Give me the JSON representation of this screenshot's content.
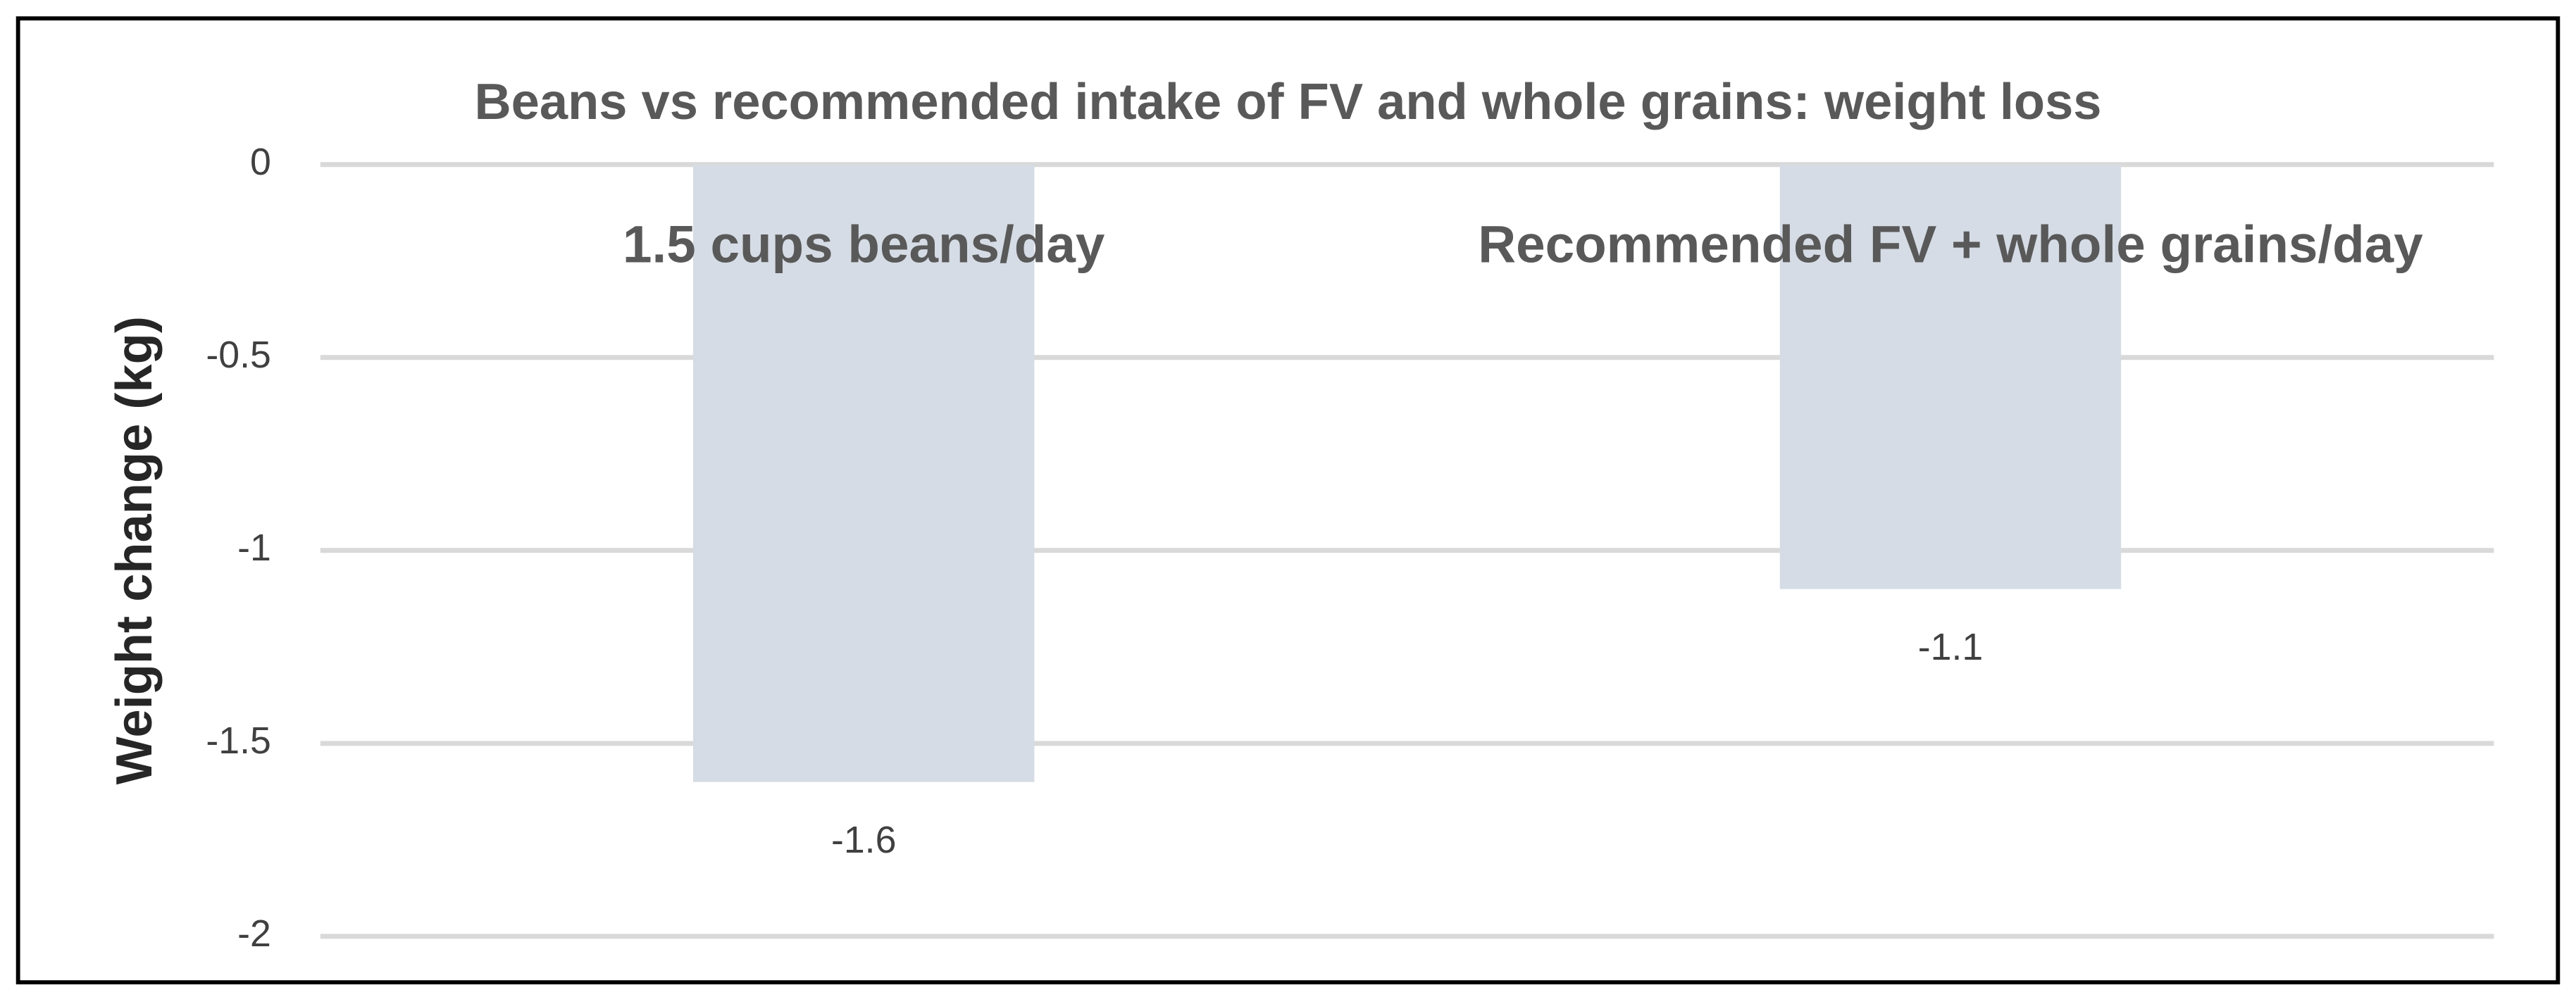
{
  "chart_data": {
    "type": "bar",
    "title": "Beans vs recommended intake of FV and whole grains: weight loss",
    "y_label": "Weight change (kg)",
    "categories": [
      "1.5 cups beans/day",
      "Recommended FV + whole grains/day"
    ],
    "values": [
      -1.6,
      -1.1
    ],
    "color": "#d6dce5",
    "ylim": [
      -2,
      0
    ],
    "yticks": [
      0,
      -0.5,
      -1,
      -1.5,
      -2
    ],
    "grid": true
  }
}
